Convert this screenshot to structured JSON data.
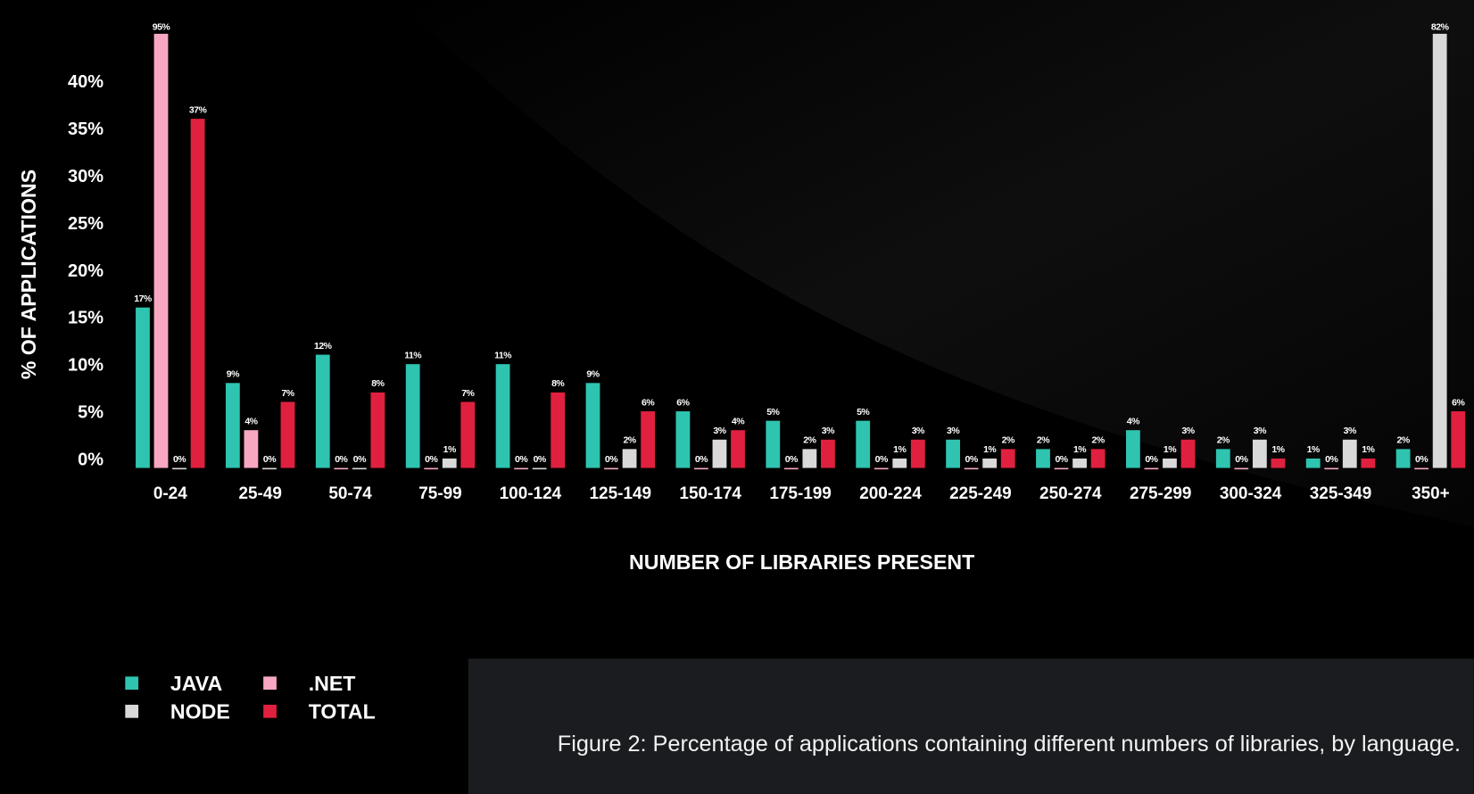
{
  "chart_data": {
    "type": "bar",
    "caption": "Figure 2: Percentage of applications containing different numbers of libraries, by language.",
    "x_label": "NUMBER OF LIBRARIES PRESENT",
    "y_label": "% OF APPLICATIONS",
    "categories": [
      "0-24",
      "25-49",
      "50-74",
      "75-99",
      "100-124",
      "125-149",
      "150-174",
      "175-199",
      "200-224",
      "225-249",
      "250-274",
      "275-299",
      "300-324",
      "325-349",
      "350+"
    ],
    "series": [
      {
        "name": "JAVA",
        "color": "#2ec4b0",
        "values": [
          17,
          9,
          12,
          11,
          11,
          9,
          6,
          5,
          5,
          3,
          2,
          4,
          2,
          1,
          2
        ],
        "value_labels": [
          "17%",
          "9%",
          "12%",
          "11%",
          "11%",
          "9%",
          "6%",
          "5%",
          "5%",
          "3%",
          "2%",
          "4%",
          "2%",
          "1%",
          "2%"
        ]
      },
      {
        "name": ".NET",
        "color": "#f7a8c0",
        "values": [
          95,
          4,
          0,
          0,
          0,
          0,
          0,
          0,
          0,
          0,
          0,
          0,
          0,
          0,
          0
        ],
        "value_labels": [
          "95%",
          "4%",
          "0%",
          "0%",
          "0%",
          "0%",
          "0%",
          "0%",
          "0%",
          "0%",
          "0%",
          "0%",
          "0%",
          "0%",
          "0%"
        ]
      },
      {
        "name": "NODE",
        "color": "#d9d9d9",
        "values": [
          0,
          0,
          0,
          1,
          0,
          2,
          3,
          2,
          1,
          1,
          1,
          1,
          3,
          3,
          82
        ],
        "value_labels": [
          "0%",
          "0%",
          "0%",
          "1%",
          "0%",
          "2%",
          "3%",
          "2%",
          "1%",
          "1%",
          "1%",
          "1%",
          "3%",
          "3%",
          "82%"
        ]
      },
      {
        "name": "TOTAL",
        "color": "#e0203f",
        "values": [
          37,
          7,
          8,
          7,
          8,
          6,
          4,
          3,
          3,
          2,
          2,
          3,
          1,
          1,
          6
        ],
        "value_labels": [
          "37%",
          "7%",
          "8%",
          "7%",
          "8%",
          "6%",
          "4%",
          "3%",
          "3%",
          "2%",
          "2%",
          "3%",
          "1%",
          "1%",
          "6%"
        ]
      }
    ],
    "ylim": [
      0,
      46
    ],
    "yticks": [
      {
        "value": 0,
        "label": "0%"
      },
      {
        "value": 5,
        "label": "5%"
      },
      {
        "value": 10,
        "label": "10%"
      },
      {
        "value": 15,
        "label": "15%"
      },
      {
        "value": 20,
        "label": "20%"
      },
      {
        "value": 25,
        "label": "25%"
      },
      {
        "value": 30,
        "label": "30%"
      },
      {
        "value": 35,
        "label": "35%"
      },
      {
        "value": 40,
        "label": "40%"
      }
    ],
    "grid": false
  }
}
